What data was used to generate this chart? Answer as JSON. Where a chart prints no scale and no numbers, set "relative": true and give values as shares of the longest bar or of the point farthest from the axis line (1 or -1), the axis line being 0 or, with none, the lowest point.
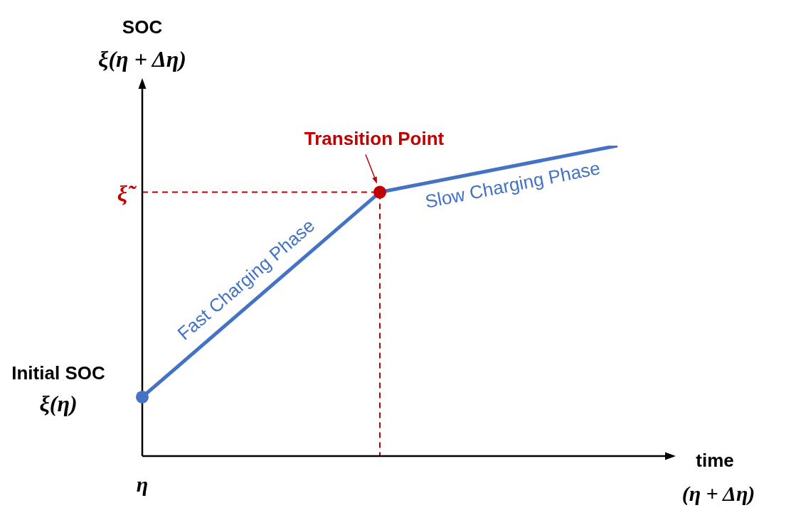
{
  "chart_data": {
    "type": "line",
    "relative": true,
    "ylabel": "SOC\nξ(η + Δη)",
    "categories": [
      null,
      null,
      null
    ],
    "series": [
      {
        "color": "#4472c4",
        "values": [
          0.19,
          0.85,
          1
        ],
        "line_style": "solid"
      }
    ],
    "ref_lines": [
      {
        "axis": "y",
        "value": 0.85,
        "label": "ξ̃",
        "color": "#c00000",
        "line_style": "dashed"
      }
    ],
    "annotations": [
      "Initial SOC\nξ(η)",
      "Transition Point",
      "Fast Charging Phase",
      "Slow Charging Phase",
      "(η + Δη)",
      "η",
      "time"
    ]
  }
}
